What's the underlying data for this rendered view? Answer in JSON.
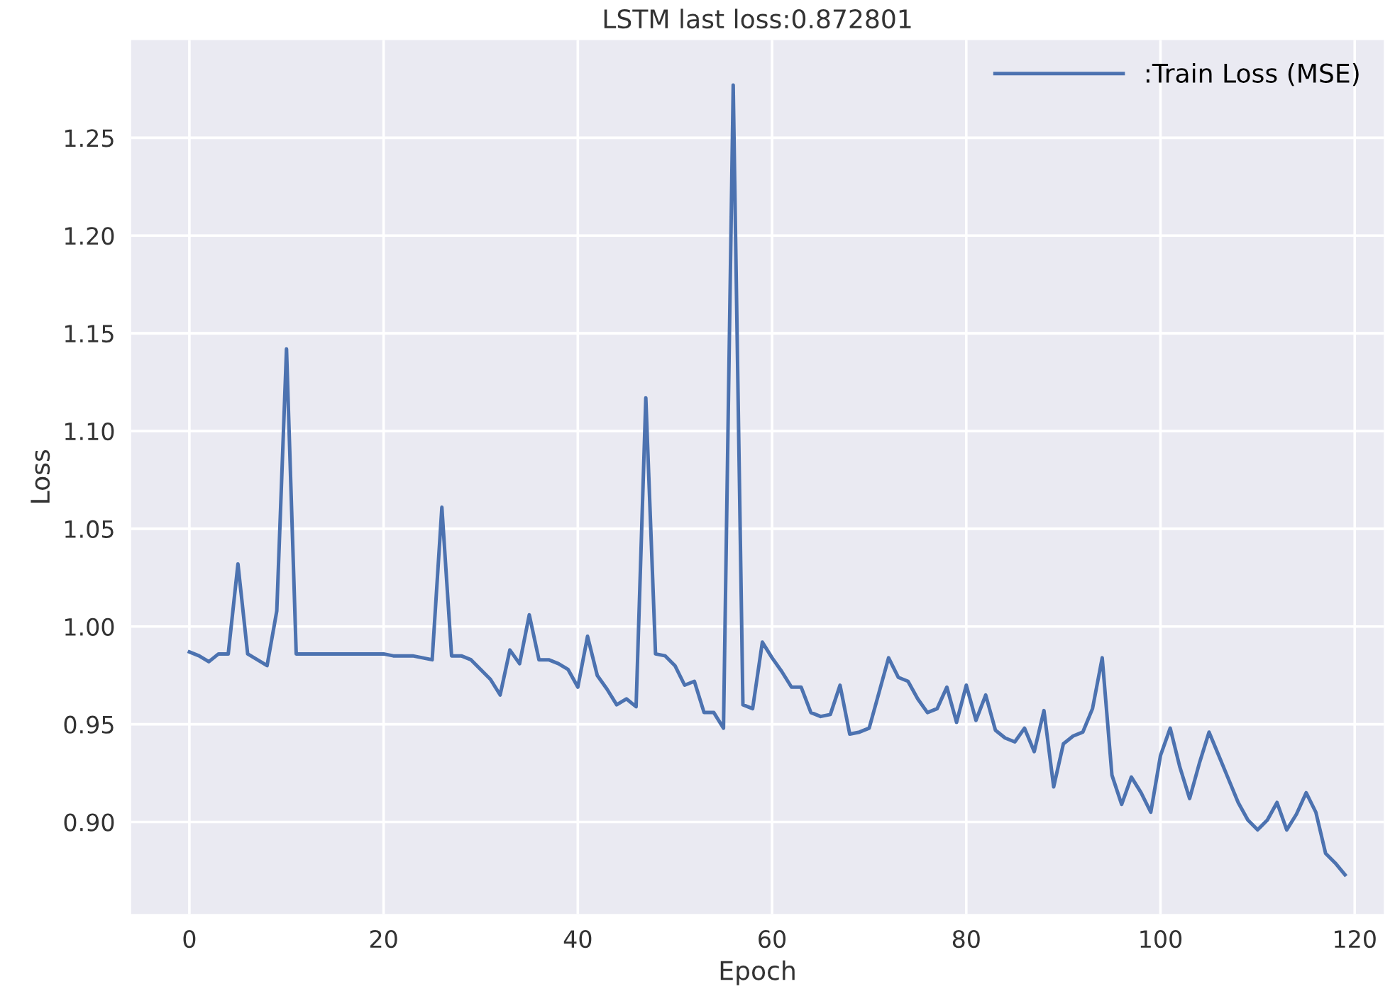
{
  "chart_data": {
    "type": "line",
    "title": "LSTM last loss:0.872801",
    "xlabel": "Epoch",
    "ylabel": "Loss",
    "x": [
      0,
      1,
      2,
      3,
      4,
      5,
      6,
      7,
      8,
      9,
      10,
      11,
      12,
      13,
      14,
      15,
      16,
      17,
      18,
      19,
      20,
      21,
      22,
      23,
      24,
      25,
      26,
      27,
      28,
      29,
      30,
      31,
      32,
      33,
      34,
      35,
      36,
      37,
      38,
      39,
      40,
      41,
      42,
      43,
      44,
      45,
      46,
      47,
      48,
      49,
      50,
      51,
      52,
      53,
      54,
      55,
      56,
      57,
      58,
      59,
      60,
      61,
      62,
      63,
      64,
      65,
      66,
      67,
      68,
      69,
      70,
      71,
      72,
      73,
      74,
      75,
      76,
      77,
      78,
      79,
      80,
      81,
      82,
      83,
      84,
      85,
      86,
      87,
      88,
      89,
      90,
      91,
      92,
      93,
      94,
      95,
      96,
      97,
      98,
      99,
      100,
      101,
      102,
      103,
      104,
      105,
      106,
      107,
      108,
      109,
      110,
      111,
      112,
      113,
      114,
      115,
      116,
      117,
      118,
      119
    ],
    "series": [
      {
        "name": ":Train Loss (MSE)",
        "color": "#4c72b0",
        "values": [
          0.987,
          0.985,
          0.982,
          0.986,
          0.986,
          1.032,
          0.986,
          0.983,
          0.98,
          1.008,
          1.142,
          0.986,
          0.986,
          0.986,
          0.986,
          0.986,
          0.986,
          0.986,
          0.986,
          0.986,
          0.986,
          0.985,
          0.985,
          0.985,
          0.984,
          0.983,
          1.061,
          0.985,
          0.985,
          0.983,
          0.978,
          0.973,
          0.965,
          0.988,
          0.981,
          1.006,
          0.983,
          0.983,
          0.981,
          0.978,
          0.969,
          0.995,
          0.975,
          0.968,
          0.96,
          0.963,
          0.959,
          1.117,
          0.986,
          0.985,
          0.98,
          0.97,
          0.972,
          0.956,
          0.956,
          0.948,
          1.277,
          0.96,
          0.958,
          0.992,
          0.984,
          0.977,
          0.969,
          0.969,
          0.956,
          0.954,
          0.955,
          0.97,
          0.945,
          0.946,
          0.948,
          0.966,
          0.984,
          0.974,
          0.972,
          0.963,
          0.956,
          0.958,
          0.969,
          0.951,
          0.97,
          0.952,
          0.965,
          0.947,
          0.943,
          0.941,
          0.948,
          0.936,
          0.957,
          0.918,
          0.94,
          0.944,
          0.946,
          0.958,
          0.984,
          0.924,
          0.909,
          0.923,
          0.915,
          0.905,
          0.934,
          0.948,
          0.928,
          0.912,
          0.93,
          0.946,
          0.934,
          0.922,
          0.91,
          0.901,
          0.896,
          0.901,
          0.91,
          0.896,
          0.904,
          0.915,
          0.905,
          0.884,
          0.879,
          0.873
        ]
      }
    ],
    "xlim": [
      -6,
      123
    ],
    "ylim": [
      0.853,
      1.3
    ],
    "xticks": [
      0,
      20,
      40,
      60,
      80,
      100,
      120
    ],
    "yticks": [
      {
        "value": 0.9,
        "label": "0.90"
      },
      0.95,
      {
        "value": 1.0,
        "label": "1.00"
      },
      1.05,
      {
        "value": 1.1,
        "label": "1.10"
      },
      1.15,
      {
        "value": 1.2,
        "label": "1.20"
      },
      1.25
    ],
    "grid": true,
    "legend": "top right",
    "marker": "none",
    "line_style": "solid"
  }
}
